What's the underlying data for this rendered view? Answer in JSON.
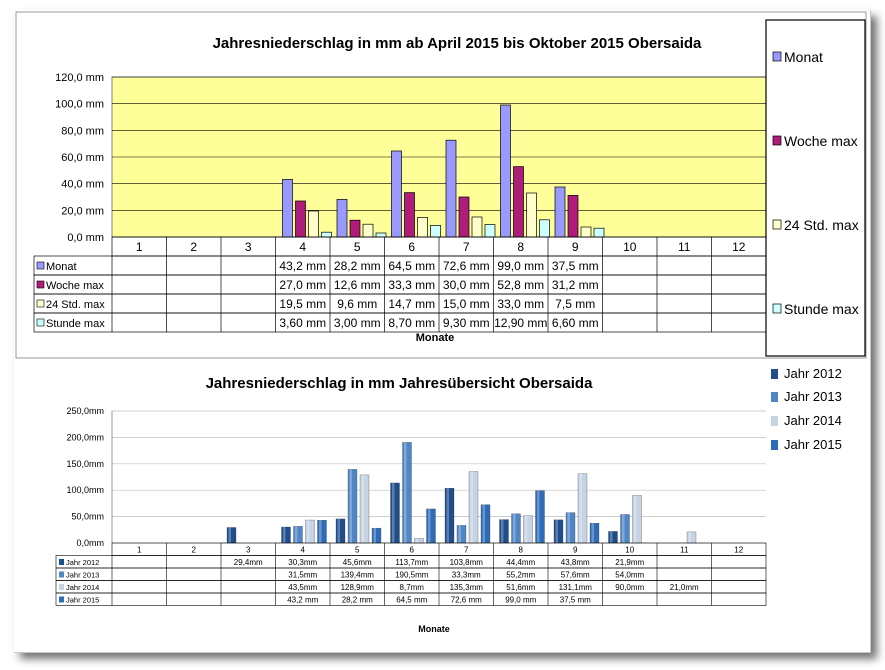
{
  "colors": {
    "monat": "#9999ff",
    "woche": "#b01c7a",
    "std24": "#ffffcc",
    "stunde": "#ccffff",
    "plot1_bg": "#ffff99",
    "j2012": "#1f4e8c",
    "j2013": "#4f86c6",
    "j2014": "#c5d3e4",
    "j2015": "#2e6cb8"
  },
  "chart_data": [
    {
      "type": "bar",
      "title": "Jahresniederschlag in mm ab April  2015 bis Oktober 2015 Obersaida",
      "xlabel": "Monate",
      "ylabel": "",
      "ylim": [
        0,
        120
      ],
      "yticks": [
        "120,0 mm",
        "100,0 mm",
        "80,0 mm",
        "60,0 mm",
        "40,0 mm",
        "20,0 mm",
        "0,0 mm"
      ],
      "categories": [
        "1",
        "2",
        "3",
        "4",
        "5",
        "6",
        "7",
        "8",
        "9",
        "10",
        "11",
        "12"
      ],
      "legend_position": "right",
      "series": [
        {
          "name": "Monat",
          "values": [
            null,
            null,
            null,
            43.2,
            28.2,
            64.5,
            72.6,
            99.0,
            37.5,
            null,
            null,
            null
          ],
          "labels": [
            "",
            "",
            "",
            "43,2 mm",
            "28,2 mm",
            "64,5 mm",
            "72,6 mm",
            "99,0 mm",
            "37,5 mm",
            "",
            "",
            ""
          ]
        },
        {
          "name": "Woche max",
          "values": [
            null,
            null,
            null,
            27.0,
            12.6,
            33.3,
            30.0,
            52.8,
            31.2,
            null,
            null,
            null
          ],
          "labels": [
            "",
            "",
            "",
            "27,0 mm",
            "12,6 mm",
            "33,3 mm",
            "30,0 mm",
            "52,8 mm",
            "31,2 mm",
            "",
            "",
            ""
          ]
        },
        {
          "name": "24 Std. max",
          "values": [
            null,
            null,
            null,
            19.5,
            9.6,
            14.7,
            15.0,
            33.0,
            7.5,
            null,
            null,
            null
          ],
          "labels": [
            "",
            "",
            "",
            "19,5 mm",
            "9,6 mm",
            "14,7 mm",
            "15,0 mm",
            "33,0 mm",
            "7,5 mm",
            "",
            "",
            ""
          ]
        },
        {
          "name": "Stunde max",
          "values": [
            null,
            null,
            null,
            3.6,
            3.0,
            8.7,
            9.3,
            12.9,
            6.6,
            null,
            null,
            null
          ],
          "labels": [
            "",
            "",
            "",
            "3,60 mm",
            "3,00 mm",
            "8,70 mm",
            "9,30 mm",
            "12,90 mm",
            "6,60 mm",
            "",
            "",
            ""
          ]
        }
      ]
    },
    {
      "type": "bar",
      "title": "Jahresniederschlag in mm  Jahresübersicht Obersaida",
      "xlabel": "Monate",
      "ylabel": "",
      "ylim": [
        0,
        250
      ],
      "yticks": [
        "250,0mm",
        "200,0mm",
        "150,0mm",
        "100,0mm",
        "50,0mm",
        "0,0mm"
      ],
      "categories": [
        "1",
        "2",
        "3",
        "4",
        "5",
        "6",
        "7",
        "8",
        "9",
        "10",
        "11",
        "12"
      ],
      "legend_position": "top-right",
      "series": [
        {
          "name": "Jahr 2012",
          "values": [
            null,
            null,
            29.4,
            30.3,
            45.6,
            113.7,
            103.8,
            44.4,
            43.8,
            21.9,
            null,
            null
          ],
          "labels": [
            "",
            "",
            "29,4mm",
            "30,3mm",
            "45,6mm",
            "113,7mm",
            "103,8mm",
            "44,4mm",
            "43,8mm",
            "21,9mm",
            "",
            ""
          ]
        },
        {
          "name": "Jahr 2013",
          "values": [
            null,
            null,
            null,
            31.5,
            139.4,
            190.5,
            33.3,
            55.2,
            57.6,
            54.0,
            null,
            null
          ],
          "labels": [
            "",
            "",
            "",
            "31,5mm",
            "139,4mm",
            "190,5mm",
            "33,3mm",
            "55,2mm",
            "57,6mm",
            "54,0mm",
            "",
            ""
          ]
        },
        {
          "name": "Jahr 2014",
          "values": [
            null,
            null,
            null,
            43.5,
            128.9,
            8.7,
            135.3,
            51.6,
            131.1,
            90.0,
            21.0,
            null
          ],
          "labels": [
            "",
            "",
            "",
            "43,5mm",
            "128,9mm",
            "8,7mm",
            "135,3mm",
            "51,6mm",
            "131,1mm",
            "90,0mm",
            "21,0mm",
            ""
          ]
        },
        {
          "name": "Jahr 2015",
          "values": [
            null,
            null,
            null,
            43.2,
            28.2,
            64.5,
            72.6,
            99.0,
            37.5,
            null,
            null,
            null
          ],
          "labels": [
            "",
            "",
            "",
            "43,2 mm",
            "28,2 mm",
            "64,5 mm",
            "72,6 mm",
            "99,0 mm",
            "37,5 mm",
            "",
            "",
            ""
          ]
        }
      ]
    }
  ]
}
